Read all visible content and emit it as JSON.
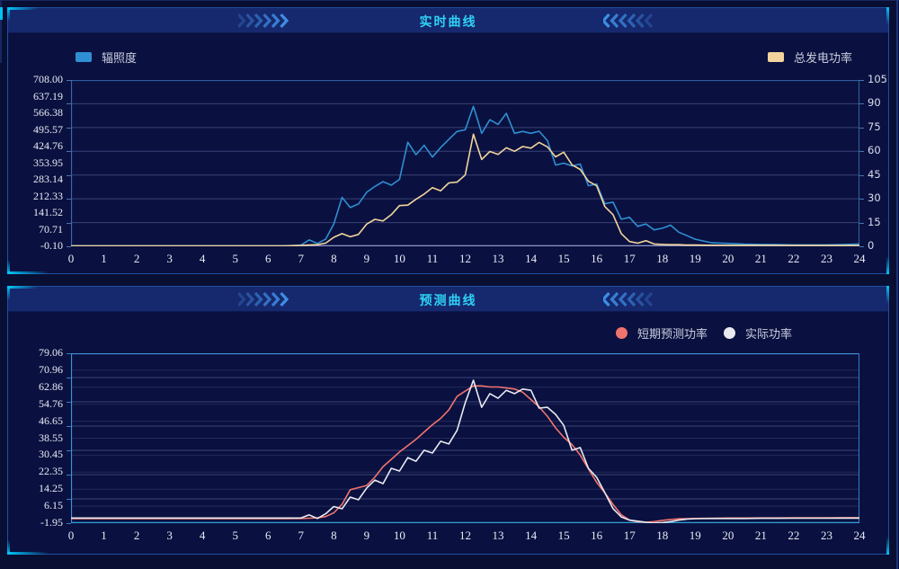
{
  "page": {
    "background": "#090e33",
    "accent_cyan": "#00c6f7",
    "header_bg": "#16286e",
    "title_color": "#2ed2f6"
  },
  "panels": [
    {
      "title": "实时曲线",
      "legend": [
        {
          "label": "辐照度",
          "color": "#29a3dc",
          "shape": "rect"
        },
        {
          "label": "总发电功率",
          "color": "#f2d49c",
          "shape": "rect"
        }
      ]
    },
    {
      "title": "预测曲线",
      "legend": [
        {
          "label": "短期预测功率",
          "color": "#f1736d",
          "shape": "circle"
        },
        {
          "label": "实际功率",
          "color": "#e9e9f0",
          "shape": "circle"
        }
      ]
    }
  ],
  "chart_data": [
    {
      "type": "line",
      "title": "实时曲线",
      "x_ticks": [
        "0",
        "1",
        "2",
        "3",
        "4",
        "5",
        "6",
        "7",
        "8",
        "9",
        "10",
        "11",
        "12",
        "13",
        "14",
        "15",
        "16",
        "17",
        "18",
        "19",
        "20",
        "21",
        "22",
        "23",
        "24"
      ],
      "x_range": [
        0,
        24
      ],
      "left_axis": {
        "ticks": [
          "708.00",
          "637.19",
          "566.38",
          "495.57",
          "424.76",
          "353.95",
          "283.14",
          "212.33",
          "141.52",
          "70.71",
          "-0.10"
        ],
        "range": [
          -0.1,
          708.0
        ]
      },
      "right_axis": {
        "ticks": [
          "105",
          "90",
          "75",
          "60",
          "45",
          "30",
          "15",
          "0"
        ],
        "range": [
          0,
          105
        ]
      },
      "x": [
        0,
        1,
        2,
        3,
        4,
        5,
        6,
        6.5,
        7,
        7.25,
        7.5,
        7.75,
        8,
        8.25,
        8.5,
        8.75,
        9,
        9.25,
        9.5,
        9.75,
        10,
        10.25,
        10.5,
        10.75,
        11,
        11.25,
        11.5,
        11.75,
        12,
        12.25,
        12.5,
        12.75,
        13,
        13.25,
        13.5,
        13.75,
        14,
        14.25,
        14.5,
        14.75,
        15,
        15.25,
        15.5,
        15.75,
        16,
        16.25,
        16.5,
        16.75,
        17,
        17.25,
        17.5,
        17.75,
        18,
        18.25,
        18.5,
        18.75,
        19,
        19.5,
        20,
        20.5,
        21,
        21.5,
        22,
        22.5,
        23,
        23.5,
        24
      ],
      "series": [
        {
          "name": "辐照度",
          "axis": "left",
          "color": "#2f8fd2",
          "values": [
            2,
            2,
            2,
            2,
            2,
            2,
            2,
            2,
            5,
            27,
            12,
            30,
            95,
            208,
            165,
            180,
            230,
            255,
            275,
            260,
            285,
            443,
            390,
            430,
            380,
            420,
            455,
            489,
            496,
            596,
            481,
            539,
            519,
            566,
            481,
            489,
            481,
            490,
            450,
            346,
            354,
            342,
            350,
            258,
            265,
            181,
            188,
            115,
            123,
            85,
            95,
            70,
            77,
            90,
            60,
            45,
            30,
            15,
            12,
            9,
            8,
            7,
            6,
            6,
            6,
            7,
            10
          ]
        },
        {
          "name": "总发电功率",
          "axis": "right",
          "color": "#f2d49c",
          "values": [
            0.3,
            0.3,
            0.3,
            0.3,
            0.3,
            0.3,
            0.3,
            0.3,
            0.5,
            0.8,
            1,
            2,
            5.7,
            8,
            6,
            7.5,
            14,
            17,
            16,
            20,
            25.7,
            26,
            29.7,
            33,
            37,
            35,
            40,
            40.5,
            45,
            70.8,
            54.8,
            59.9,
            58,
            62.2,
            60,
            63,
            62,
            65.6,
            62.8,
            56.5,
            59.4,
            51.4,
            48.5,
            41.1,
            38.2,
            25.1,
            20,
            8,
            3,
            2,
            3.5,
            1.5,
            1.2,
            1,
            1,
            0.8,
            0.8,
            0.7,
            0.6,
            0.6,
            0.6,
            0.6,
            0.5,
            0.5,
            0.5,
            0.5,
            0.5
          ]
        }
      ],
      "legend_position": "top-left-and-top-right",
      "grid": "horizontal-only"
    },
    {
      "type": "line",
      "title": "预测曲线",
      "x_ticks": [
        "0",
        "1",
        "2",
        "3",
        "4",
        "5",
        "6",
        "7",
        "8",
        "9",
        "10",
        "11",
        "12",
        "13",
        "14",
        "15",
        "16",
        "17",
        "18",
        "19",
        "20",
        "21",
        "22",
        "23",
        "24"
      ],
      "x_range": [
        0,
        24
      ],
      "left_axis": {
        "ticks": [
          "79.06",
          "70.96",
          "62.86",
          "54.76",
          "46.65",
          "38.55",
          "30.45",
          "22.35",
          "14.25",
          "6.15",
          "-1.95"
        ],
        "range": [
          -1.95,
          79.06
        ]
      },
      "x": [
        0,
        1,
        2,
        3,
        4,
        5,
        6,
        6.5,
        7,
        7.25,
        7.5,
        7.75,
        8,
        8.25,
        8.5,
        8.75,
        9,
        9.25,
        9.5,
        9.75,
        10,
        10.25,
        10.5,
        10.75,
        11,
        11.25,
        11.5,
        11.75,
        12,
        12.25,
        12.5,
        12.75,
        13,
        13.25,
        13.5,
        13.75,
        14,
        14.25,
        14.5,
        14.75,
        15,
        15.25,
        15.5,
        15.75,
        16,
        16.25,
        16.5,
        16.75,
        17,
        17.25,
        17.5,
        17.75,
        18,
        18.25,
        18.5,
        18.75,
        19,
        19.5,
        20,
        20.5,
        21,
        21.5,
        22,
        22.5,
        23,
        23.5,
        24
      ],
      "series": [
        {
          "name": "短期预测功率",
          "axis": "left",
          "color": "#f1736d",
          "values": [
            0.2,
            0.2,
            0.2,
            0.2,
            0.2,
            0.2,
            0.2,
            0.2,
            0.3,
            0.4,
            0.6,
            1.2,
            3,
            7,
            14,
            15,
            16,
            20,
            25,
            28.5,
            32,
            35,
            38,
            41.5,
            45,
            48,
            52,
            58.5,
            61,
            63.5,
            63.5,
            63,
            63,
            62.5,
            62,
            60.5,
            57,
            53.5,
            49,
            43.5,
            39,
            35.5,
            30.5,
            24,
            17.5,
            12.5,
            7,
            2,
            -0.5,
            -1.3,
            -1.5,
            -1.2,
            -0.6,
            -0.2,
            0.1,
            0.2,
            0.3,
            0.4,
            0.5,
            0.5,
            0.55,
            0.55,
            0.6,
            0.6,
            0.6,
            0.65,
            0.65
          ]
        },
        {
          "name": "实际功率",
          "axis": "left",
          "color": "#e9e9f0",
          "values": [
            0.5,
            0.5,
            0.5,
            0.5,
            0.5,
            0.5,
            0.5,
            0.5,
            0.5,
            2,
            0.3,
            2.5,
            6,
            4.9,
            10.5,
            9.2,
            14.8,
            18.6,
            16.9,
            24.2,
            22.9,
            29.3,
            27.6,
            32.8,
            31.5,
            37.1,
            35.8,
            42.3,
            55.5,
            66.2,
            53.3,
            59.8,
            57.6,
            61.4,
            59.8,
            62,
            61.4,
            52.9,
            53.3,
            49.9,
            44.7,
            32.8,
            34.1,
            24.2,
            19.9,
            12.6,
            5,
            1,
            -0.5,
            -1,
            -1.5,
            -1.9,
            -1.7,
            -1.2,
            -0.5,
            0,
            0.2,
            0.3,
            0.3,
            0.3,
            0.35,
            0.35,
            0.4,
            0.4,
            0.4,
            0.45,
            0.45
          ]
        }
      ],
      "legend_position": "top-right",
      "grid": "horizontal-only"
    }
  ]
}
